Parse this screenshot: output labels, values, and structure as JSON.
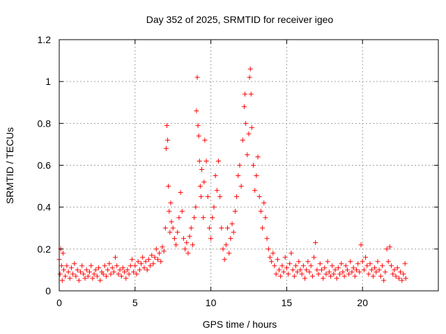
{
  "chart_data": {
    "type": "scatter",
    "title": "Day 352 of 2025, SRMTID for receiver igeo",
    "xlabel": "GPS time / hours",
    "ylabel": "SRMTID / TECUs",
    "xlim": [
      0,
      25
    ],
    "ylim": [
      0,
      1.2
    ],
    "xticks": [
      0,
      5,
      10,
      15,
      20
    ],
    "xtick_labels": [
      "0",
      "5",
      "10",
      "15",
      "20"
    ],
    "yticks": [
      0,
      0.2,
      0.4,
      0.6,
      0.8,
      1,
      1.2
    ],
    "ytick_labels": [
      "0",
      "0.2",
      "0.4",
      "0.6",
      "0.8",
      "1",
      "1.2"
    ],
    "grid": true,
    "marker": "plus",
    "color": "#ff0000",
    "series": [
      {
        "name": "SRMTID",
        "points": [
          [
            0.0,
            0.15
          ],
          [
            0.05,
            0.08
          ],
          [
            0.1,
            0.2
          ],
          [
            0.15,
            0.12
          ],
          [
            0.2,
            0.05
          ],
          [
            0.25,
            0.18
          ],
          [
            0.3,
            0.1
          ],
          [
            0.4,
            0.07
          ],
          [
            0.5,
            0.12
          ],
          [
            0.6,
            0.09
          ],
          [
            0.7,
            0.06
          ],
          [
            0.8,
            0.11
          ],
          [
            0.9,
            0.08
          ],
          [
            1.0,
            0.13
          ],
          [
            1.1,
            0.07
          ],
          [
            1.2,
            0.1
          ],
          [
            1.3,
            0.05
          ],
          [
            1.4,
            0.09
          ],
          [
            1.5,
            0.12
          ],
          [
            1.6,
            0.08
          ],
          [
            1.7,
            0.06
          ],
          [
            1.8,
            0.1
          ],
          [
            1.9,
            0.07
          ],
          [
            2.0,
            0.09
          ],
          [
            2.1,
            0.12
          ],
          [
            2.2,
            0.06
          ],
          [
            2.3,
            0.08
          ],
          [
            2.4,
            0.1
          ],
          [
            2.5,
            0.07
          ],
          [
            2.6,
            0.11
          ],
          [
            2.7,
            0.05
          ],
          [
            2.8,
            0.09
          ],
          [
            2.9,
            0.08
          ],
          [
            3.0,
            0.12
          ],
          [
            3.1,
            0.07
          ],
          [
            3.2,
            0.1
          ],
          [
            3.3,
            0.13
          ],
          [
            3.4,
            0.08
          ],
          [
            3.5,
            0.11
          ],
          [
            3.6,
            0.09
          ],
          [
            3.7,
            0.16
          ],
          [
            3.8,
            0.12
          ],
          [
            3.9,
            0.08
          ],
          [
            4.0,
            0.1
          ],
          [
            4.1,
            0.07
          ],
          [
            4.2,
            0.11
          ],
          [
            4.3,
            0.09
          ],
          [
            4.4,
            0.06
          ],
          [
            4.5,
            0.1
          ],
          [
            4.6,
            0.08
          ],
          [
            4.7,
            0.12
          ],
          [
            4.8,
            0.15
          ],
          [
            4.9,
            0.09
          ],
          [
            5.0,
            0.12
          ],
          [
            5.1,
            0.08
          ],
          [
            5.2,
            0.14
          ],
          [
            5.3,
            0.1
          ],
          [
            5.4,
            0.13
          ],
          [
            5.5,
            0.16
          ],
          [
            5.6,
            0.11
          ],
          [
            5.7,
            0.14
          ],
          [
            5.8,
            0.1
          ],
          [
            5.9,
            0.15
          ],
          [
            6.0,
            0.12
          ],
          [
            6.1,
            0.17
          ],
          [
            6.2,
            0.13
          ],
          [
            6.3,
            0.16
          ],
          [
            6.4,
            0.2
          ],
          [
            6.5,
            0.15
          ],
          [
            6.6,
            0.18
          ],
          [
            6.7,
            0.14
          ],
          [
            6.8,
            0.21
          ],
          [
            6.9,
            0.19
          ],
          [
            7.0,
            0.3
          ],
          [
            7.05,
            0.68
          ],
          [
            7.1,
            0.79
          ],
          [
            7.15,
            0.72
          ],
          [
            7.2,
            0.5
          ],
          [
            7.25,
            0.38
          ],
          [
            7.3,
            0.28
          ],
          [
            7.35,
            0.42
          ],
          [
            7.4,
            0.33
          ],
          [
            7.5,
            0.3
          ],
          [
            7.6,
            0.25
          ],
          [
            7.7,
            0.22
          ],
          [
            7.8,
            0.28
          ],
          [
            7.9,
            0.35
          ],
          [
            8.0,
            0.47
          ],
          [
            8.1,
            0.38
          ],
          [
            8.2,
            0.25
          ],
          [
            8.3,
            0.2
          ],
          [
            8.4,
            0.23
          ],
          [
            8.5,
            0.18
          ],
          [
            8.6,
            0.26
          ],
          [
            8.7,
            0.3
          ],
          [
            8.8,
            0.22
          ],
          [
            8.9,
            0.35
          ],
          [
            9.0,
            0.4
          ],
          [
            9.05,
            0.86
          ],
          [
            9.1,
            1.02
          ],
          [
            9.15,
            0.79
          ],
          [
            9.2,
            0.74
          ],
          [
            9.25,
            0.62
          ],
          [
            9.3,
            0.5
          ],
          [
            9.35,
            0.45
          ],
          [
            9.4,
            0.58
          ],
          [
            9.5,
            0.35
          ],
          [
            9.55,
            0.52
          ],
          [
            9.6,
            0.72
          ],
          [
            9.7,
            0.62
          ],
          [
            9.8,
            0.45
          ],
          [
            9.9,
            0.3
          ],
          [
            10.0,
            0.25
          ],
          [
            10.1,
            0.35
          ],
          [
            10.2,
            0.4
          ],
          [
            10.3,
            0.55
          ],
          [
            10.4,
            0.48
          ],
          [
            10.5,
            0.62
          ],
          [
            10.6,
            0.45
          ],
          [
            10.7,
            0.3
          ],
          [
            10.8,
            0.2
          ],
          [
            10.9,
            0.15
          ],
          [
            11.0,
            0.22
          ],
          [
            11.1,
            0.3
          ],
          [
            11.2,
            0.18
          ],
          [
            11.3,
            0.25
          ],
          [
            11.4,
            0.32
          ],
          [
            11.5,
            0.28
          ],
          [
            11.6,
            0.38
          ],
          [
            11.7,
            0.45
          ],
          [
            11.8,
            0.55
          ],
          [
            11.9,
            0.6
          ],
          [
            12.0,
            0.5
          ],
          [
            12.1,
            0.72
          ],
          [
            12.2,
            0.88
          ],
          [
            12.25,
            0.94
          ],
          [
            12.3,
            0.8
          ],
          [
            12.4,
            0.65
          ],
          [
            12.5,
            0.75
          ],
          [
            12.55,
            1.02
          ],
          [
            12.6,
            1.06
          ],
          [
            12.65,
            0.94
          ],
          [
            12.7,
            0.78
          ],
          [
            12.8,
            0.6
          ],
          [
            12.9,
            0.48
          ],
          [
            13.0,
            0.55
          ],
          [
            13.1,
            0.64
          ],
          [
            13.2,
            0.45
          ],
          [
            13.3,
            0.38
          ],
          [
            13.4,
            0.3
          ],
          [
            13.5,
            0.42
          ],
          [
            13.6,
            0.35
          ],
          [
            13.7,
            0.25
          ],
          [
            13.8,
            0.2
          ],
          [
            13.9,
            0.16
          ],
          [
            14.0,
            0.14
          ],
          [
            14.1,
            0.18
          ],
          [
            14.2,
            0.12
          ],
          [
            14.3,
            0.08
          ],
          [
            14.4,
            0.15
          ],
          [
            14.5,
            0.1
          ],
          [
            14.6,
            0.07
          ],
          [
            14.7,
            0.12
          ],
          [
            14.8,
            0.09
          ],
          [
            14.9,
            0.16
          ],
          [
            15.0,
            0.11
          ],
          [
            15.1,
            0.08
          ],
          [
            15.2,
            0.13
          ],
          [
            15.3,
            0.18
          ],
          [
            15.4,
            0.1
          ],
          [
            15.5,
            0.07
          ],
          [
            15.6,
            0.12
          ],
          [
            15.7,
            0.09
          ],
          [
            15.8,
            0.14
          ],
          [
            15.9,
            0.1
          ],
          [
            16.0,
            0.08
          ],
          [
            16.1,
            0.12
          ],
          [
            16.2,
            0.06
          ],
          [
            16.3,
            0.1
          ],
          [
            16.4,
            0.14
          ],
          [
            16.5,
            0.09
          ],
          [
            16.6,
            0.12
          ],
          [
            16.7,
            0.07
          ],
          [
            16.8,
            0.16
          ],
          [
            16.9,
            0.23
          ],
          [
            17.0,
            0.1
          ],
          [
            17.1,
            0.08
          ],
          [
            17.2,
            0.13
          ],
          [
            17.3,
            0.1
          ],
          [
            17.4,
            0.06
          ],
          [
            17.5,
            0.11
          ],
          [
            17.6,
            0.08
          ],
          [
            17.7,
            0.14
          ],
          [
            17.8,
            0.09
          ],
          [
            17.9,
            0.07
          ],
          [
            18.0,
            0.12
          ],
          [
            18.1,
            0.08
          ],
          [
            18.2,
            0.1
          ],
          [
            18.3,
            0.06
          ],
          [
            18.4,
            0.11
          ],
          [
            18.5,
            0.08
          ],
          [
            18.6,
            0.13
          ],
          [
            18.7,
            0.09
          ],
          [
            18.8,
            0.07
          ],
          [
            18.9,
            0.12
          ],
          [
            19.0,
            0.1
          ],
          [
            19.1,
            0.08
          ],
          [
            19.2,
            0.14
          ],
          [
            19.3,
            0.09
          ],
          [
            19.4,
            0.11
          ],
          [
            19.5,
            0.07
          ],
          [
            19.6,
            0.1
          ],
          [
            19.7,
            0.13
          ],
          [
            19.8,
            0.09
          ],
          [
            19.9,
            0.22
          ],
          [
            20.0,
            0.14
          ],
          [
            20.1,
            0.1
          ],
          [
            20.2,
            0.16
          ],
          [
            20.3,
            0.12
          ],
          [
            20.4,
            0.08
          ],
          [
            20.5,
            0.13
          ],
          [
            20.6,
            0.1
          ],
          [
            20.7,
            0.07
          ],
          [
            20.8,
            0.11
          ],
          [
            20.9,
            0.09
          ],
          [
            21.0,
            0.14
          ],
          [
            21.1,
            0.1
          ],
          [
            21.2,
            0.07
          ],
          [
            21.3,
            0.12
          ],
          [
            21.4,
            0.05
          ],
          [
            21.5,
            0.09
          ],
          [
            21.6,
            0.2
          ],
          [
            21.7,
            0.14
          ],
          [
            21.8,
            0.21
          ],
          [
            21.9,
            0.12
          ],
          [
            22.0,
            0.08
          ],
          [
            22.1,
            0.1
          ],
          [
            22.2,
            0.07
          ],
          [
            22.3,
            0.11
          ],
          [
            22.4,
            0.06
          ],
          [
            22.5,
            0.09
          ],
          [
            22.6,
            0.05
          ],
          [
            22.7,
            0.08
          ],
          [
            22.8,
            0.13
          ],
          [
            22.85,
            0.06
          ]
        ]
      }
    ]
  }
}
